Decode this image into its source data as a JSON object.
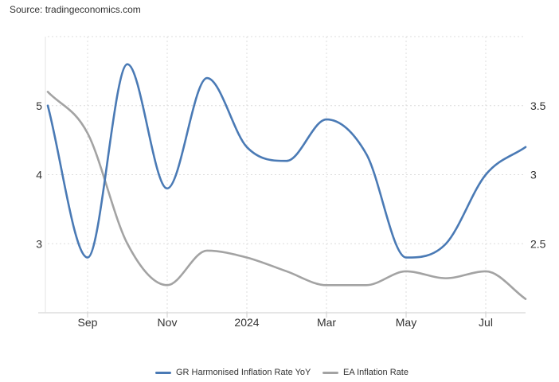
{
  "source": "Source: tradingeconomics.com",
  "chart_data": {
    "type": "line",
    "title": "",
    "xlabel": "",
    "ylabel": "",
    "x": [
      "2023-08",
      "2023-09",
      "2023-10",
      "2023-11",
      "2023-12",
      "2024-01",
      "2024-02",
      "2024-03",
      "2024-04",
      "2024-05",
      "2024-06",
      "2024-07",
      "2024-08"
    ],
    "x_tick_labels": [
      "Sep",
      "Nov",
      "2024",
      "Mar",
      "May",
      "Jul"
    ],
    "y_left": {
      "ticks": [
        "3",
        "4",
        "5"
      ],
      "range": [
        2,
        6
      ]
    },
    "y_right": {
      "ticks": [
        "2.5",
        "3",
        "3.5"
      ],
      "range": [
        2,
        4
      ]
    },
    "grid": true,
    "legend_position": "bottom",
    "series": [
      {
        "name": "GR Harmonised Inflation Rate YoY",
        "axis": "left",
        "color": "#4a7ab5",
        "values": [
          5.0,
          2.8,
          5.6,
          3.8,
          5.4,
          4.4,
          4.2,
          4.8,
          4.3,
          2.8,
          3.0,
          4.0,
          4.4
        ]
      },
      {
        "name": "EA Inflation Rate",
        "axis": "right",
        "color": "#a3a3a3",
        "values": [
          3.6,
          3.3,
          2.5,
          2.2,
          2.45,
          2.4,
          2.3,
          2.2,
          2.2,
          2.3,
          2.25,
          2.3,
          2.1
        ]
      }
    ]
  }
}
